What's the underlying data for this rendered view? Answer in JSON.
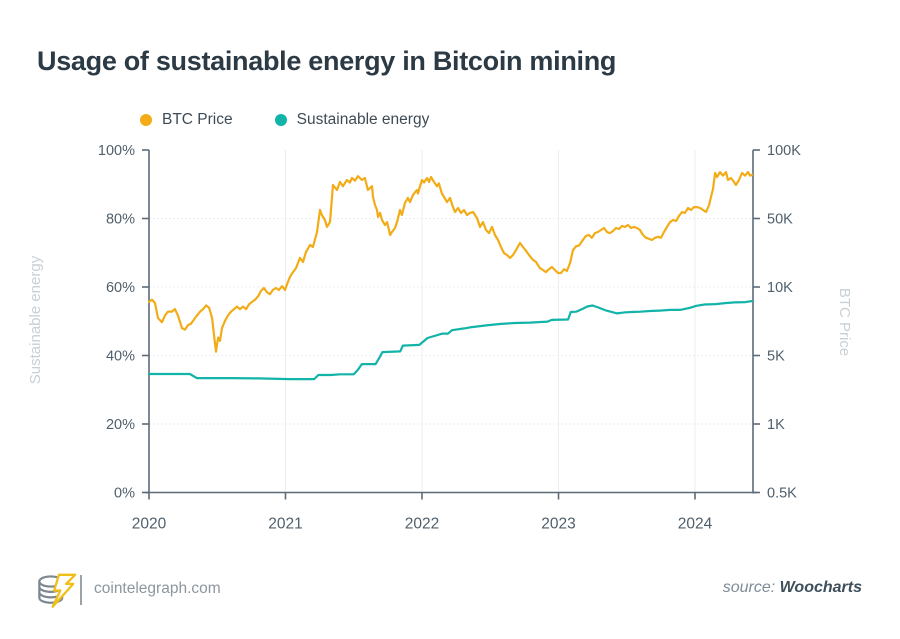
{
  "title": "Usage of sustainable energy in Bitcoin mining",
  "legend": [
    {
      "label": "BTC Price",
      "color": "#F2AC18"
    },
    {
      "label": "Sustainable energy",
      "color": "#12B3A8"
    }
  ],
  "footer": {
    "site": "cointelegraph.com",
    "source_prefix": "source:",
    "source_name": "Woocharts",
    "logo_icon": "cointelegraph-coin-lightning-logo"
  },
  "colors": {
    "btc_line": "#F2AC18",
    "sustainable_line": "#12B3A8",
    "axis": "#5b6b78",
    "tick_label": "#4f5f6c",
    "axis_title": "#c7d0d6",
    "gridline": "#ebedee",
    "title_text": "#2c3a45"
  },
  "chart_data": {
    "type": "line",
    "title": "Usage of sustainable energy in Bitcoin mining",
    "x_axis": {
      "tick_labels": [
        "2020",
        "2021",
        "2022",
        "2023",
        "2024"
      ],
      "tick_years": [
        2020,
        2021,
        2022,
        2023,
        2024
      ],
      "range": [
        2020,
        2024.43
      ]
    },
    "left_axis": {
      "label": "Sustainable energy",
      "tick_labels": [
        "0%",
        "20%",
        "40%",
        "60%",
        "80%",
        "100%"
      ],
      "ticks_percent": [
        0,
        20,
        40,
        60,
        80,
        100
      ],
      "range": [
        0,
        100
      ]
    },
    "right_axis": {
      "label": "BTC Price",
      "tick_labels": [
        "0.5K",
        "1K",
        "5K",
        "10K",
        "50K",
        "100K"
      ],
      "ticks_thousands": [
        0.5,
        1,
        5,
        10,
        50,
        100
      ],
      "scale": "log-interpolated between equally spaced ticks"
    },
    "grid": true,
    "legend_position": "top-left",
    "series": [
      {
        "name": "BTC Price",
        "axis": "right",
        "unit": "USD thousands",
        "color": "#F2AC18",
        "x": [
          2020.0,
          2020.022,
          2020.044,
          2020.066,
          2020.095,
          2020.117,
          2020.139,
          2020.168,
          2020.19,
          2020.212,
          2020.242,
          2020.264,
          2020.286,
          2020.308,
          2020.33,
          2020.352,
          2020.374,
          2020.396,
          2020.418,
          2020.44,
          2020.462,
          2020.484,
          2020.491,
          2020.506,
          2020.52,
          2020.535,
          2020.557,
          2020.579,
          2020.601,
          2020.623,
          2020.645,
          2020.667,
          2020.689,
          2020.711,
          2020.733,
          2020.755,
          2020.777,
          2020.799,
          2020.82,
          2020.842,
          2020.864,
          2020.886,
          2020.908,
          2020.93,
          2020.952,
          2020.974,
          2020.996,
          2021.018,
          2021.033,
          2021.055,
          2021.077,
          2021.106,
          2021.128,
          2021.15,
          2021.18,
          2021.201,
          2021.231,
          2021.253,
          2021.267,
          2021.289,
          2021.304,
          2021.326,
          2021.348,
          2021.377,
          2021.399,
          2021.421,
          2021.45,
          2021.472,
          2021.487,
          2021.509,
          2021.531,
          2021.56,
          2021.582,
          2021.604,
          2021.634,
          2021.641,
          2021.656,
          2021.67,
          2021.678,
          2021.692,
          2021.707,
          2021.729,
          2021.744,
          2021.766,
          2021.78,
          2021.802,
          2021.817,
          2021.839,
          2021.853,
          2021.875,
          2021.897,
          2021.912,
          2021.934,
          2021.963,
          2021.971,
          2021.985,
          2022.0,
          2022.015,
          2022.037,
          2022.051,
          2022.066,
          2022.088,
          2022.11,
          2022.124,
          2022.146,
          2022.161,
          2022.183,
          2022.205,
          2022.227,
          2022.242,
          2022.264,
          2022.286,
          2022.308,
          2022.33,
          2022.352,
          2022.374,
          2022.403,
          2022.425,
          2022.447,
          2022.469,
          2022.491,
          2022.513,
          2022.535,
          2022.557,
          2022.579,
          2022.601,
          2022.623,
          2022.645,
          2022.667,
          2022.689,
          2022.718,
          2022.74,
          2022.762,
          2022.784,
          2022.813,
          2022.835,
          2022.864,
          2022.886,
          2022.908,
          2022.93,
          2022.952,
          2022.974,
          2022.996,
          2023.018,
          2023.04,
          2023.062,
          2023.084,
          2023.106,
          2023.128,
          2023.15,
          2023.179,
          2023.201,
          2023.223,
          2023.245,
          2023.267,
          2023.289,
          2023.311,
          2023.333,
          2023.355,
          2023.377,
          2023.399,
          2023.421,
          2023.443,
          2023.465,
          2023.487,
          2023.509,
          2023.531,
          2023.553,
          2023.575,
          2023.597,
          2023.619,
          2023.641,
          2023.663,
          2023.685,
          2023.707,
          2023.729,
          2023.751,
          2023.773,
          2023.795,
          2023.817,
          2023.839,
          2023.861,
          2023.883,
          2023.905,
          2023.927,
          2023.949,
          2023.971,
          2023.993,
          2024.015,
          2024.037,
          2024.059,
          2024.081,
          2024.103,
          2024.117,
          2024.132,
          2024.147,
          2024.161,
          2024.183,
          2024.205,
          2024.227,
          2024.242,
          2024.264,
          2024.286,
          2024.3,
          2024.322,
          2024.344,
          2024.366,
          2024.388,
          2024.403,
          2024.418
        ],
        "values": [
          8.6,
          8.8,
          8.5,
          7.3,
          7.0,
          7.5,
          7.8,
          7.8,
          8.0,
          7.5,
          6.6,
          6.5,
          6.8,
          6.9,
          7.2,
          7.5,
          7.8,
          8.0,
          8.3,
          8.1,
          7.3,
          5.6,
          5.2,
          6.0,
          5.8,
          6.6,
          7.1,
          7.5,
          7.8,
          8.0,
          8.2,
          8.0,
          8.2,
          8.0,
          8.4,
          8.6,
          8.8,
          9.1,
          9.6,
          9.9,
          9.5,
          9.3,
          9.7,
          9.9,
          9.7,
          10.2,
          9.7,
          11.3,
          12.7,
          14.2,
          15.6,
          19.8,
          18.0,
          22.8,
          26.9,
          25.6,
          36.4,
          54.5,
          51.8,
          48.3,
          41.0,
          46.1,
          70.2,
          66.7,
          72.4,
          69.3,
          73.8,
          72.0,
          75.3,
          73.3,
          76.8,
          73.8,
          75.3,
          66.7,
          69.3,
          62.2,
          57.3,
          54.5,
          50.8,
          52.9,
          48.3,
          42.9,
          45.9,
          33.9,
          36.4,
          40.0,
          45.9,
          54.5,
          51.8,
          58.4,
          61.6,
          59.0,
          63.5,
          66.7,
          64.4,
          69.3,
          73.8,
          72.0,
          75.3,
          72.4,
          76.1,
          72.4,
          69.3,
          71.3,
          64.4,
          62.2,
          59.0,
          61.6,
          56.1,
          53.4,
          55.6,
          52.9,
          54.5,
          51.8,
          52.9,
          53.4,
          50.2,
          41.0,
          45.9,
          38.2,
          35.5,
          41.0,
          33.9,
          30.2,
          25.6,
          22.2,
          21.2,
          19.8,
          21.2,
          23.8,
          28.1,
          25.6,
          23.4,
          21.2,
          18.9,
          18.0,
          15.6,
          14.9,
          14.2,
          15.2,
          16.0,
          14.9,
          13.9,
          13.9,
          15.2,
          14.6,
          17.5,
          23.8,
          26.0,
          26.5,
          30.2,
          33.2,
          33.9,
          31.8,
          35.5,
          36.4,
          38.2,
          40.0,
          36.4,
          35.5,
          37.3,
          40.0,
          39.1,
          41.9,
          41.0,
          42.9,
          40.0,
          41.0,
          40.0,
          38.2,
          33.9,
          31.8,
          31.0,
          30.2,
          31.8,
          32.5,
          31.8,
          36.4,
          41.0,
          45.9,
          48.3,
          47.1,
          51.3,
          53.4,
          52.9,
          55.6,
          54.5,
          56.1,
          56.1,
          55.6,
          54.5,
          53.4,
          57.3,
          62.2,
          67.4,
          79.2,
          76.1,
          80.0,
          77.2,
          80.0,
          73.8,
          75.3,
          72.4,
          70.2,
          73.8,
          79.2,
          77.2,
          80.0,
          77.2,
          77.8
        ]
      },
      {
        "name": "Sustainable energy",
        "axis": "left",
        "unit": "percent",
        "color": "#12B3A8",
        "x": [
          2020.0,
          2020.3,
          2020.35,
          2020.6,
          2020.8,
          2021.03,
          2021.21,
          2021.24,
          2021.33,
          2021.4,
          2021.5,
          2021.53,
          2021.56,
          2021.66,
          2021.69,
          2021.71,
          2021.84,
          2021.86,
          2021.98,
          2022.01,
          2022.04,
          2022.15,
          2022.19,
          2022.22,
          2022.31,
          2022.35,
          2022.47,
          2022.57,
          2022.68,
          2022.79,
          2022.92,
          2022.95,
          2023.07,
          2023.09,
          2023.13,
          2023.18,
          2023.21,
          2023.25,
          2023.3,
          2023.35,
          2023.4,
          2023.43,
          2023.49,
          2023.54,
          2023.6,
          2023.67,
          2023.74,
          2023.82,
          2023.89,
          2023.96,
          2024.01,
          2024.07,
          2024.15,
          2024.22,
          2024.29,
          2024.37,
          2024.42
        ],
        "values": [
          34.6,
          34.6,
          33.4,
          33.4,
          33.3,
          33.1,
          33.1,
          34.3,
          34.3,
          34.5,
          34.5,
          35.8,
          37.5,
          37.5,
          39.5,
          41.0,
          41.2,
          42.9,
          43.1,
          44.1,
          45.1,
          46.4,
          46.4,
          47.4,
          47.9,
          48.2,
          48.8,
          49.2,
          49.5,
          49.6,
          49.9,
          50.4,
          50.5,
          52.7,
          52.8,
          53.7,
          54.3,
          54.6,
          53.9,
          53.1,
          52.6,
          52.3,
          52.6,
          52.7,
          52.8,
          53.0,
          53.1,
          53.3,
          53.3,
          53.9,
          54.5,
          54.9,
          55.0,
          55.3,
          55.5,
          55.6,
          55.9
        ]
      }
    ]
  }
}
